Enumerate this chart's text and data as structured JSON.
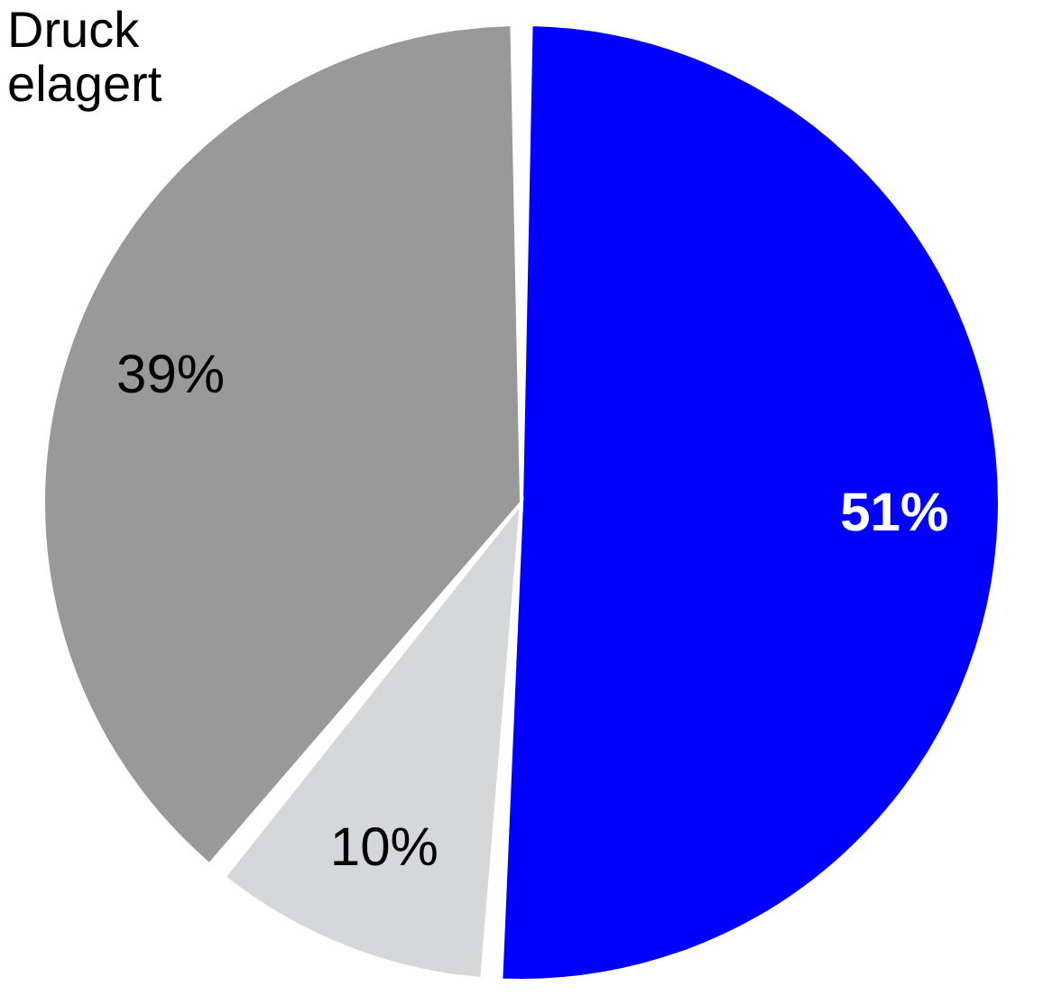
{
  "chart_data": {
    "type": "pie",
    "categories": [
      null,
      null,
      null
    ],
    "values": [
      51,
      10,
      39
    ],
    "colors": [
      "#0000ff",
      "#d6d7d9",
      "#999999"
    ],
    "value_labels": [
      "51%",
      "10%",
      "39%"
    ],
    "annotations": [
      "Druck\nelagert"
    ]
  }
}
